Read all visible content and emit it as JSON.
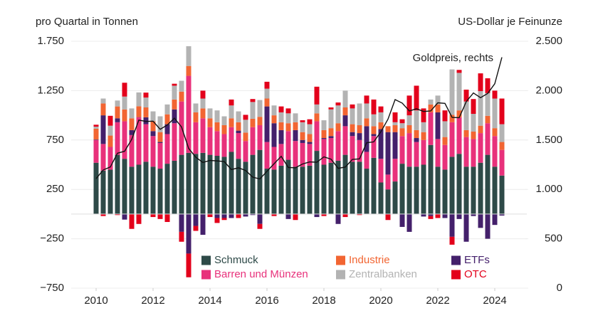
{
  "chart_data": {
    "type": "bar",
    "stacked": true,
    "y_label": "pro Quartal in Tonnen",
    "y2_label": "US-Dollar je Feinunze",
    "x": [
      2010,
      2010.25,
      2010.5,
      2010.75,
      2011,
      2011.25,
      2011.5,
      2011.75,
      2012,
      2012.25,
      2012.5,
      2012.75,
      2013,
      2013.25,
      2013.5,
      2013.75,
      2014,
      2014.25,
      2014.5,
      2014.75,
      2015,
      2015.25,
      2015.5,
      2015.75,
      2016,
      2016.25,
      2016.5,
      2016.75,
      2017,
      2017.25,
      2017.5,
      2017.75,
      2018,
      2018.25,
      2018.5,
      2018.75,
      2019,
      2019.25,
      2019.5,
      2019.75,
      2020,
      2020.25,
      2020.5,
      2020.75,
      2021,
      2021.25,
      2021.5,
      2021.75,
      2022,
      2022.25,
      2022.5,
      2022.75,
      2023,
      2023.25,
      2023.5,
      2023.75,
      2024,
      2024.25
    ],
    "xlim": [
      2009.5,
      2024.75
    ],
    "xticks": [
      2010,
      2012,
      2014,
      2016,
      2018,
      2020,
      2022,
      2024
    ],
    "ylim": [
      -750,
      1750
    ],
    "yticks": [
      {
        "value": 1750,
        "label": "1.750"
      },
      {
        "value": 1250,
        "label": "1.250"
      },
      750,
      250,
      {
        "value": -250,
        "label": "−250"
      },
      {
        "value": -750,
        "label": "−750"
      }
    ],
    "y2lim": [
      0,
      2500
    ],
    "y2ticks": [
      {
        "value": 2500,
        "label": "2.500"
      },
      {
        "value": 2000,
        "label": "2.000"
      },
      {
        "value": 1500,
        "label": "1.500"
      },
      {
        "value": 1000,
        "label": "1.000"
      },
      500,
      0
    ],
    "grid": true,
    "series": [
      {
        "name": "Schmuck",
        "color": "#2e4a48",
        "values": [
          520,
          440,
          450,
          600,
          560,
          480,
          500,
          530,
          480,
          460,
          510,
          540,
          600,
          620,
          610,
          620,
          600,
          590,
          580,
          630,
          560,
          530,
          600,
          650,
          460,
          450,
          490,
          550,
          480,
          480,
          490,
          640,
          500,
          520,
          540,
          600,
          530,
          530,
          460,
          570,
          320,
          250,
          330,
          510,
          480,
          480,
          500,
          700,
          480,
          450,
          580,
          610,
          480,
          480,
          520,
          600,
          480,
          390
        ]
      },
      {
        "name": "Barren und Münzen",
        "color": "#e8317b",
        "values": [
          230,
          270,
          230,
          330,
          380,
          320,
          480,
          380,
          310,
          260,
          300,
          380,
          540,
          780,
          320,
          350,
          280,
          250,
          230,
          250,
          260,
          210,
          280,
          250,
          270,
          230,
          220,
          290,
          260,
          240,
          220,
          300,
          260,
          250,
          300,
          290,
          260,
          220,
          170,
          220,
          240,
          150,
          230,
          280,
          340,
          250,
          250,
          330,
          280,
          250,
          350,
          370,
          300,
          280,
          300,
          320,
          310,
          260
        ]
      },
      {
        "name": "ETFs",
        "color": "#44206b",
        "values": [
          5,
          290,
          -2,
          40,
          -56,
          50,
          2,
          70,
          50,
          10,
          100,
          140,
          -180,
          -400,
          -120,
          -210,
          0,
          -40,
          -40,
          -40,
          25,
          -25,
          -10,
          -100,
          360,
          240,
          140,
          -50,
          110,
          30,
          20,
          -30,
          10,
          20,
          -100,
          110,
          40,
          70,
          260,
          20,
          300,
          430,
          270,
          -130,
          -180,
          40,
          -25,
          -20,
          270,
          -40,
          -230,
          -50,
          -280,
          -20,
          -140,
          -250,
          -110,
          -15
        ]
      },
      {
        "name": "Industrie",
        "color": "#f26532",
        "values": [
          110,
          120,
          115,
          120,
          120,
          120,
          110,
          100,
          100,
          100,
          100,
          100,
          100,
          100,
          100,
          100,
          90,
          90,
          90,
          90,
          85,
          85,
          85,
          85,
          80,
          80,
          80,
          80,
          80,
          80,
          80,
          80,
          80,
          80,
          80,
          80,
          80,
          80,
          80,
          80,
          70,
          60,
          70,
          80,
          80,
          80,
          80,
          80,
          80,
          80,
          75,
          70,
          70,
          75,
          75,
          75,
          80,
          80
        ]
      },
      {
        "name": "Zentralbanken",
        "color": "#b3b3b3",
        "values": [
          20,
          50,
          100,
          60,
          130,
          100,
          140,
          100,
          100,
          160,
          100,
          140,
          110,
          200,
          90,
          100,
          100,
          120,
          90,
          130,
          110,
          130,
          170,
          170,
          100,
          100,
          100,
          100,
          90,
          100,
          100,
          90,
          100,
          190,
          180,
          170,
          160,
          220,
          150,
          120,
          100,
          0,
          30,
          50,
          100,
          200,
          100,
          50,
          90,
          160,
          460,
          380,
          290,
          180,
          350,
          230,
          300,
          180
        ]
      },
      {
        "name": "OTC",
        "color": "#e3001b",
        "values": [
          20,
          -20,
          100,
          -10,
          140,
          -150,
          -100,
          50,
          -30,
          -50,
          -80,
          20,
          -100,
          -240,
          -50,
          80,
          -30,
          -50,
          -20,
          60,
          -40,
          50,
          30,
          -50,
          70,
          -20,
          60,
          50,
          -60,
          20,
          50,
          180,
          -20,
          20,
          30,
          -30,
          40,
          -10,
          80,
          150,
          60,
          -60,
          100,
          40,
          200,
          250,
          140,
          -30,
          -40,
          110,
          -80,
          30,
          120,
          150,
          180,
          150,
          80,
          260
        ]
      },
      {
        "name": "Goldpreis, rechts",
        "type": "line",
        "axis": "y2",
        "color": "#111111",
        "values": [
          1109,
          1197,
          1227,
          1367,
          1386,
          1506,
          1702,
          1688,
          1691,
          1609,
          1652,
          1722,
          1632,
          1415,
          1326,
          1272,
          1293,
          1288,
          1282,
          1201,
          1218,
          1192,
          1124,
          1106,
          1183,
          1260,
          1335,
          1222,
          1219,
          1257,
          1278,
          1275,
          1329,
          1306,
          1213,
          1226,
          1304,
          1309,
          1472,
          1481,
          1583,
          1711,
          1909,
          1874,
          1794,
          1816,
          1789,
          1795,
          1877,
          1871,
          1729,
          1726,
          1890,
          1976,
          1929,
          1971,
          2070,
          2338
        ]
      }
    ]
  }
}
